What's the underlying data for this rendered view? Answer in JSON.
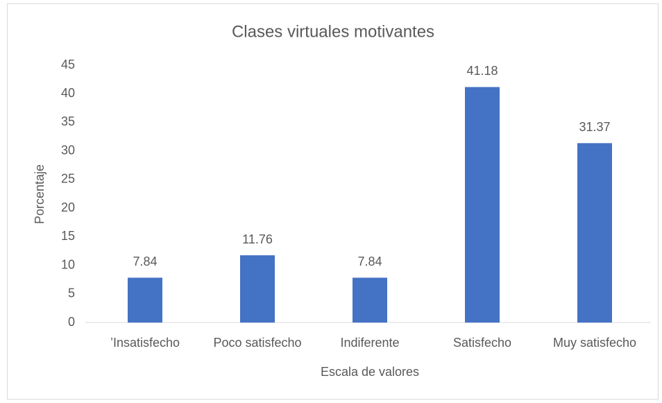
{
  "chart_data": {
    "type": "bar",
    "title": "Clases virtuales motivantes",
    "x_label": "Escala de valores",
    "y_label": "Porcentaje",
    "categories": [
      "’Insatisfecho",
      "Poco satisfecho",
      "Indiferente",
      "Satisfecho",
      "Muy satisfecho"
    ],
    "values": [
      7.84,
      11.76,
      7.84,
      41.18,
      31.37
    ],
    "color": "#4472c4",
    "ylim": [
      0,
      45
    ],
    "yticks": [
      0,
      5,
      10,
      15,
      20,
      25,
      30,
      35,
      40,
      45
    ],
    "grid": false
  }
}
